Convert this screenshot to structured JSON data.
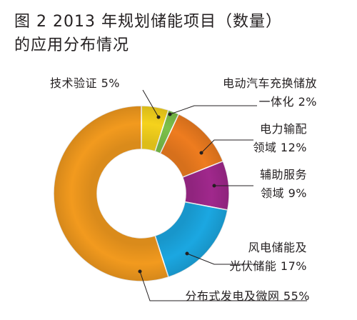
{
  "figure": {
    "title_line1": "图 2  2013 年规划储能项目（数量）",
    "title_line2": "的应用分布情况"
  },
  "chart_data": {
    "type": "pie",
    "style": "donut",
    "title": "图 2  2013 年规划储能项目（数量）的应用分布情况",
    "slices": [
      {
        "label_lines": [
          "技术验证 5%"
        ],
        "label": "技术验证",
        "value": 5,
        "color": "#f5d21c"
      },
      {
        "label_lines": [
          "电动汽车充换储放",
          "一体化 2%"
        ],
        "label": "电动汽车充换储放一体化",
        "value": 2,
        "color": "#7cc14a"
      },
      {
        "label_lines": [
          "电力输配",
          "领域 12%"
        ],
        "label": "电力输配领域",
        "value": 12,
        "color": "#ee7c1f"
      },
      {
        "label_lines": [
          "辅助服务",
          "领域 9%"
        ],
        "label": "辅助服务领域",
        "value": 9,
        "color": "#a0288c"
      },
      {
        "label_lines": [
          "风电储能及",
          "光伏储能 17%"
        ],
        "label": "风电储能及光伏储能",
        "value": 17,
        "color": "#1ba7e1"
      },
      {
        "label_lines": [
          "分布式发电及微网 55%"
        ],
        "label": "分布式发电及微网",
        "value": 55,
        "color": "#f29a1e"
      }
    ]
  }
}
